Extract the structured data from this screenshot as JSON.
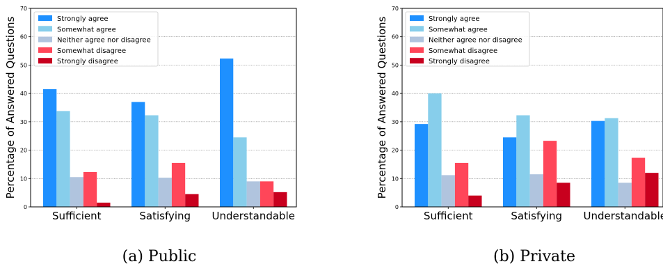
{
  "figure": {
    "series_colors": [
      "#1e90ff",
      "#87ceeb",
      "#b0c4de",
      "#ff4659",
      "#c8001e"
    ]
  },
  "chart_data": [
    {
      "type": "bar",
      "caption": "(a) Public",
      "ylabel": "Percentage of Answered Questions",
      "ylim": [
        0,
        70
      ],
      "yticks": [
        0,
        10,
        20,
        30,
        40,
        50,
        60,
        70
      ],
      "grid": "horizontal dotted",
      "legend_position": "top-left",
      "categories": [
        "Sufficient",
        "Satisfying",
        "Understandable"
      ],
      "series": [
        {
          "name": "Strongly agree",
          "values": [
            41.5,
            37.0,
            52.3
          ]
        },
        {
          "name": "Somewhat agree",
          "values": [
            33.8,
            32.3,
            24.5
          ]
        },
        {
          "name": "Neither agree nor disagree",
          "values": [
            10.5,
            10.3,
            9.0
          ]
        },
        {
          "name": "Somewhat disagree",
          "values": [
            12.3,
            15.5,
            9.0
          ]
        },
        {
          "name": "Strongly disagree",
          "values": [
            1.5,
            4.5,
            5.2
          ]
        }
      ]
    },
    {
      "type": "bar",
      "caption": "(b) Private",
      "ylabel": "Percentage of Answered Questions",
      "ylim": [
        0,
        70
      ],
      "yticks": [
        0,
        10,
        20,
        30,
        40,
        50,
        60,
        70
      ],
      "grid": "horizontal dotted",
      "legend_position": "top-left",
      "categories": [
        "Sufficient",
        "Satisfying",
        "Understandable"
      ],
      "series": [
        {
          "name": "Strongly agree",
          "values": [
            29.2,
            24.5,
            30.3
          ]
        },
        {
          "name": "Somewhat agree",
          "values": [
            40.0,
            32.3,
            31.3
          ]
        },
        {
          "name": "Neither agree nor disagree",
          "values": [
            11.2,
            11.5,
            8.5
          ]
        },
        {
          "name": "Somewhat disagree",
          "values": [
            15.5,
            23.3,
            17.3
          ]
        },
        {
          "name": "Strongly disagree",
          "values": [
            4.0,
            8.5,
            12.0
          ]
        }
      ]
    }
  ]
}
